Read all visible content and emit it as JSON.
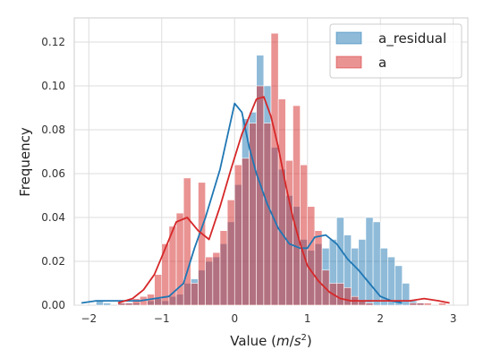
{
  "chart_data": {
    "type": "histogram",
    "xlabel_prefix": "Value (",
    "xlabel_unit_m": "m",
    "xlabel_unit_s": "s",
    "xlabel_unit_exp": "2",
    "xlabel_suffix": ")",
    "ylabel": "Frequency",
    "xlim": [
      -2.2,
      3.2
    ],
    "ylim": [
      0,
      0.131
    ],
    "xticks": [
      -2,
      -1,
      0,
      1,
      2,
      3
    ],
    "xtick_labels": [
      "−2",
      "−1",
      "0",
      "1",
      "2",
      "3"
    ],
    "yticks": [
      0,
      0.02,
      0.04,
      0.06,
      0.08,
      0.1,
      0.12
    ],
    "ytick_labels": [
      "0.00",
      "0.02",
      "0.04",
      "0.06",
      "0.08",
      "0.10",
      "0.12"
    ],
    "grid": true,
    "legend_position": "top-right",
    "bin_width": 0.1,
    "series": [
      {
        "name": "a_residual",
        "color": "#1f77b4",
        "alpha": 0.5,
        "bin_start": -1.9,
        "values": [
          0.002,
          0.001,
          0.0,
          0.001,
          0.001,
          0.001,
          0.0,
          0.002,
          0.003,
          0.002,
          0.004,
          0.005,
          0.01,
          0.012,
          0.016,
          0.02,
          0.022,
          0.028,
          0.038,
          0.055,
          0.085,
          0.088,
          0.114,
          0.1,
          0.072,
          0.062,
          0.05,
          0.045,
          0.03,
          0.025,
          0.028,
          0.026,
          0.03,
          0.04,
          0.032,
          0.026,
          0.03,
          0.04,
          0.038,
          0.026,
          0.022,
          0.018,
          0.01,
          0.002,
          0.001,
          0.0
        ]
      },
      {
        "name": "a",
        "color": "#d62728",
        "alpha": 0.5,
        "bin_start": -1.9,
        "values": [
          0.0,
          0.0,
          0.0,
          0.001,
          0.001,
          0.003,
          0.004,
          0.005,
          0.014,
          0.028,
          0.036,
          0.042,
          0.058,
          0.01,
          0.056,
          0.022,
          0.024,
          0.034,
          0.048,
          0.064,
          0.067,
          0.083,
          0.1,
          0.083,
          0.124,
          0.094,
          0.066,
          0.091,
          0.064,
          0.045,
          0.034,
          0.016,
          0.01,
          0.01,
          0.008,
          0.004,
          0.002,
          0.001,
          0.0,
          0.0,
          0.0,
          0.0,
          0.0,
          0.001,
          0.001,
          0.001,
          0.0,
          0.001,
          0.0
        ]
      }
    ],
    "kde": [
      {
        "name": "a_residual",
        "color": "#1f77b4",
        "points": [
          [
            -2.1,
            0.001
          ],
          [
            -1.9,
            0.002
          ],
          [
            -1.7,
            0.002
          ],
          [
            -1.5,
            0.002
          ],
          [
            -1.3,
            0.002
          ],
          [
            -1.1,
            0.003
          ],
          [
            -0.9,
            0.004
          ],
          [
            -0.7,
            0.01
          ],
          [
            -0.55,
            0.026
          ],
          [
            -0.4,
            0.04
          ],
          [
            -0.2,
            0.062
          ],
          [
            0.0,
            0.092
          ],
          [
            0.1,
            0.088
          ],
          [
            0.2,
            0.072
          ],
          [
            0.3,
            0.06
          ],
          [
            0.45,
            0.046
          ],
          [
            0.6,
            0.035
          ],
          [
            0.75,
            0.028
          ],
          [
            0.9,
            0.026
          ],
          [
            1.0,
            0.026
          ],
          [
            1.1,
            0.031
          ],
          [
            1.25,
            0.032
          ],
          [
            1.4,
            0.028
          ],
          [
            1.55,
            0.021
          ],
          [
            1.7,
            0.016
          ],
          [
            1.85,
            0.01
          ],
          [
            2.0,
            0.004
          ],
          [
            2.15,
            0.002
          ],
          [
            2.3,
            0.001
          ]
        ]
      },
      {
        "name": "a",
        "color": "#d62728",
        "points": [
          [
            -1.6,
            0.001
          ],
          [
            -1.4,
            0.003
          ],
          [
            -1.25,
            0.007
          ],
          [
            -1.1,
            0.014
          ],
          [
            -0.95,
            0.026
          ],
          [
            -0.8,
            0.038
          ],
          [
            -0.65,
            0.04
          ],
          [
            -0.5,
            0.034
          ],
          [
            -0.35,
            0.03
          ],
          [
            -0.2,
            0.045
          ],
          [
            -0.05,
            0.062
          ],
          [
            0.1,
            0.078
          ],
          [
            0.2,
            0.086
          ],
          [
            0.3,
            0.094
          ],
          [
            0.4,
            0.095
          ],
          [
            0.5,
            0.086
          ],
          [
            0.6,
            0.072
          ],
          [
            0.7,
            0.055
          ],
          [
            0.8,
            0.04
          ],
          [
            0.9,
            0.028
          ],
          [
            1.0,
            0.018
          ],
          [
            1.15,
            0.011
          ],
          [
            1.3,
            0.006
          ],
          [
            1.45,
            0.003
          ],
          [
            1.6,
            0.002
          ],
          [
            1.8,
            0.002
          ],
          [
            2.0,
            0.002
          ],
          [
            2.2,
            0.002
          ],
          [
            2.4,
            0.002
          ],
          [
            2.6,
            0.003
          ],
          [
            2.8,
            0.002
          ],
          [
            2.95,
            0.001
          ]
        ]
      }
    ]
  }
}
